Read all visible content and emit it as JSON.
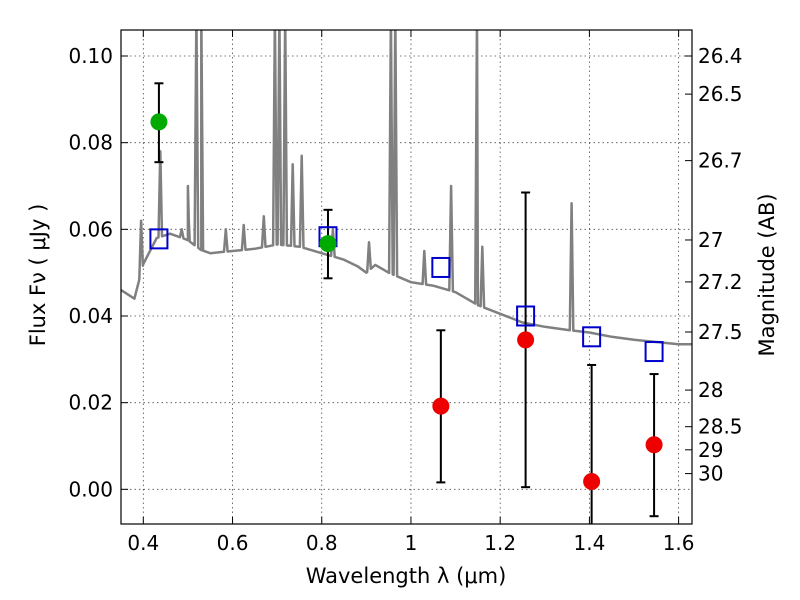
{
  "chart_data": {
    "type": "scatter",
    "title": "",
    "xlabel": "Wavelength  λ (μm)",
    "ylabel": "Flux  Fν  ( μJy )",
    "ylabel_right": "Magnitude (AB)",
    "xlim": [
      0.35,
      1.63
    ],
    "ylim": [
      -0.008,
      0.106
    ],
    "grid": true,
    "x_ticks": [
      {
        "v": 0.4,
        "label": "0.4"
      },
      {
        "v": 0.6,
        "label": "0.6"
      },
      {
        "v": 0.8,
        "label": "0.8"
      },
      {
        "v": 1.0,
        "label": "1"
      },
      {
        "v": 1.2,
        "label": "1.2"
      },
      {
        "v": 1.4,
        "label": "1.4"
      },
      {
        "v": 1.6,
        "label": "1.6"
      }
    ],
    "y_ticks": [
      {
        "v": 0.0,
        "label": "0.00"
      },
      {
        "v": 0.02,
        "label": "0.02"
      },
      {
        "v": 0.04,
        "label": "0.04"
      },
      {
        "v": 0.06,
        "label": "0.06"
      },
      {
        "v": 0.08,
        "label": "0.08"
      },
      {
        "v": 0.1,
        "label": "0.10"
      }
    ],
    "right_ticks": [
      {
        "mag": 26.4,
        "label": "26.4"
      },
      {
        "mag": 26.5,
        "label": "26.5"
      },
      {
        "mag": 26.7,
        "label": "26.7"
      },
      {
        "mag": 27,
        "label": "27"
      },
      {
        "mag": 27.2,
        "label": "27.2"
      },
      {
        "mag": 27.5,
        "label": "27.5"
      },
      {
        "mag": 28,
        "label": "28"
      },
      {
        "mag": 28.5,
        "label": "28.5"
      },
      {
        "mag": 29,
        "label": "29"
      },
      {
        "mag": 30,
        "label": "30"
      }
    ],
    "series": [
      {
        "kind": "spectrum",
        "color": "#808080",
        "baseline": [
          [
            0.35,
            0.046
          ],
          [
            0.38,
            0.044
          ],
          [
            0.4,
            0.052
          ],
          [
            0.43,
            0.058
          ],
          [
            0.46,
            0.059
          ],
          [
            0.5,
            0.0575
          ],
          [
            0.53,
            0.0552
          ],
          [
            0.55,
            0.0545
          ],
          [
            0.6,
            0.055
          ],
          [
            0.65,
            0.0555
          ],
          [
            0.7,
            0.0565
          ],
          [
            0.75,
            0.056
          ],
          [
            0.8,
            0.0545
          ],
          [
            0.85,
            0.053
          ],
          [
            0.88,
            0.0515
          ],
          [
            0.9,
            0.05
          ],
          [
            0.92,
            0.0518
          ],
          [
            0.95,
            0.05
          ],
          [
            1.0,
            0.0478
          ],
          [
            1.05,
            0.047
          ],
          [
            1.1,
            0.0455
          ],
          [
            1.15,
            0.0425
          ],
          [
            1.2,
            0.0405
          ],
          [
            1.25,
            0.0385
          ],
          [
            1.3,
            0.0375
          ],
          [
            1.35,
            0.0368
          ],
          [
            1.4,
            0.0362
          ],
          [
            1.45,
            0.0352
          ],
          [
            1.5,
            0.0345
          ],
          [
            1.55,
            0.034
          ],
          [
            1.6,
            0.0335
          ],
          [
            1.63,
            0.0335
          ]
        ],
        "lines": [
          [
            0.395,
            0.062
          ],
          [
            0.438,
            0.078
          ],
          [
            0.486,
            0.06
          ],
          [
            0.502,
            0.062
          ],
          [
            0.5,
            0.07
          ],
          [
            0.519,
            0.11
          ],
          [
            0.53,
            0.11
          ],
          [
            0.585,
            0.06
          ],
          [
            0.625,
            0.061
          ],
          [
            0.67,
            0.063
          ],
          [
            0.695,
            0.11
          ],
          [
            0.705,
            0.11
          ],
          [
            0.718,
            0.11
          ],
          [
            0.735,
            0.075
          ],
          [
            0.755,
            0.077
          ],
          [
            0.825,
            0.06
          ],
          [
            0.906,
            0.057
          ],
          [
            0.955,
            0.11
          ],
          [
            0.965,
            0.11
          ],
          [
            1.03,
            0.055
          ],
          [
            1.09,
            0.07
          ],
          [
            1.148,
            0.11
          ],
          [
            1.16,
            0.056
          ],
          [
            1.36,
            0.066
          ]
        ]
      },
      {
        "kind": "model",
        "marker": "open-square",
        "color": "#0000cc",
        "points": [
          {
            "x": 0.435,
            "y": 0.0578
          },
          {
            "x": 0.814,
            "y": 0.0583
          },
          {
            "x": 1.067,
            "y": 0.0512
          },
          {
            "x": 1.257,
            "y": 0.04
          },
          {
            "x": 1.405,
            "y": 0.0352
          },
          {
            "x": 1.545,
            "y": 0.0318
          }
        ]
      },
      {
        "kind": "detection",
        "marker": "filled-circle",
        "color": "#00aa00",
        "points": [
          {
            "x": 0.435,
            "y": 0.0848,
            "lo": 0.0755,
            "hi": 0.0937
          },
          {
            "x": 0.814,
            "y": 0.0567,
            "lo": 0.0487,
            "hi": 0.0645
          }
        ]
      },
      {
        "kind": "measurement",
        "marker": "filled-circle",
        "color": "#ee0000",
        "points": [
          {
            "x": 1.067,
            "y": 0.0192,
            "lo": 0.0016,
            "hi": 0.0367
          },
          {
            "x": 1.257,
            "y": 0.0345,
            "lo": 0.0005,
            "hi": 0.0685
          },
          {
            "x": 1.405,
            "y": 0.0018,
            "lo": -0.009,
            "hi": 0.0287
          },
          {
            "x": 1.545,
            "y": 0.0103,
            "lo": -0.0062,
            "hi": 0.0266
          }
        ]
      }
    ]
  }
}
